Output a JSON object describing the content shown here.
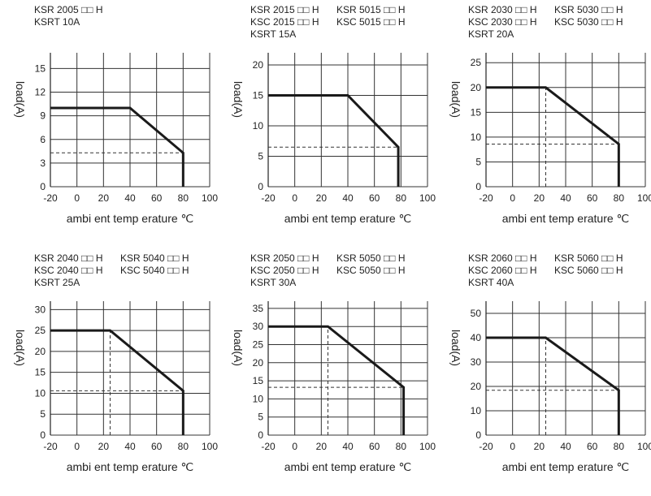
{
  "x_axis_label": "ambi ent temp erature ℃",
  "y_axis_label": "load(A)",
  "chart_data": [
    {
      "type": "line",
      "models": [
        [
          "KSR 2005 □□ H"
        ],
        [
          "KSRT 10A"
        ]
      ],
      "xlabel": "ambi ent temp erature ℃",
      "ylabel": "load(A)",
      "xticks": [
        -20,
        0,
        20,
        40,
        60,
        80,
        100
      ],
      "yticks": [
        0,
        3,
        6,
        9,
        12,
        15
      ],
      "xlim": [
        -20,
        100
      ],
      "ylim": [
        0,
        17
      ],
      "grid": true,
      "series": [
        {
          "x": [
            -20,
            40,
            80,
            80
          ],
          "y": [
            10,
            10,
            4.3,
            0
          ]
        }
      ],
      "dashed_h": {
        "y": 4.3,
        "x_from": -20,
        "x_to": 80
      },
      "dashed_v": null
    },
    {
      "type": "line",
      "models": [
        [
          "KSR 2015 □□ H",
          "KSR 5015 □□ H"
        ],
        [
          "KSC 2015 □□ H",
          "KSC 5015 □□ H"
        ],
        [
          "KSRT 15A"
        ]
      ],
      "xlabel": "ambi ent temp erature ℃",
      "ylabel": "load(A)",
      "xticks": [
        -20,
        0,
        20,
        40,
        60,
        80,
        100
      ],
      "yticks": [
        0,
        5,
        10,
        15,
        20
      ],
      "xlim": [
        -20,
        100
      ],
      "ylim": [
        0,
        22
      ],
      "grid": true,
      "series": [
        {
          "x": [
            -20,
            40,
            78,
            78
          ],
          "y": [
            15,
            15,
            6.5,
            0
          ]
        }
      ],
      "dashed_h": {
        "y": 6.5,
        "x_from": -20,
        "x_to": 78
      },
      "dashed_v": null
    },
    {
      "type": "line",
      "models": [
        [
          "KSR 2030 □□ H",
          "KSR 5030 □□ H"
        ],
        [
          "KSC 2030 □□ H",
          "KSC 5030 □□ H"
        ],
        [
          "KSRT 20A"
        ]
      ],
      "xlabel": "ambi ent temp erature ℃",
      "ylabel": "load(A)",
      "xticks": [
        -20,
        0,
        20,
        40,
        60,
        80,
        100
      ],
      "yticks": [
        0,
        5,
        10,
        15,
        20,
        25
      ],
      "xlim": [
        -20,
        100
      ],
      "ylim": [
        0,
        27
      ],
      "grid": true,
      "series": [
        {
          "x": [
            -20,
            25,
            80,
            80
          ],
          "y": [
            20,
            20,
            8.6,
            0
          ]
        }
      ],
      "dashed_h": {
        "y": 8.6,
        "x_from": -20,
        "x_to": 80
      },
      "dashed_v": {
        "x": 25,
        "y_from": 0,
        "y_to": 20
      }
    },
    {
      "type": "line",
      "models": [
        [
          "KSR 2040 □□ H",
          "KSR 5040 □□ H"
        ],
        [
          "KSC 2040 □□ H",
          "KSC 5040 □□ H"
        ],
        [
          "KSRT 25A"
        ]
      ],
      "xlabel": "ambi ent temp erature ℃",
      "ylabel": "load(A)",
      "xticks": [
        -20,
        0,
        20,
        40,
        60,
        80,
        100
      ],
      "yticks": [
        0,
        5,
        10,
        15,
        20,
        25,
        30
      ],
      "xlim": [
        -20,
        100
      ],
      "ylim": [
        0,
        32
      ],
      "grid": true,
      "series": [
        {
          "x": [
            -20,
            25,
            80,
            80
          ],
          "y": [
            25,
            25,
            10.6,
            0
          ]
        }
      ],
      "dashed_h": {
        "y": 10.6,
        "x_from": -20,
        "x_to": 80
      },
      "dashed_v": {
        "x": 25,
        "y_from": 0,
        "y_to": 25
      }
    },
    {
      "type": "line",
      "models": [
        [
          "KSR 2050 □□ H",
          "KSR 5050 □□ H"
        ],
        [
          "KSC 2050 □□ H",
          "KSC 5050 □□ H"
        ],
        [
          "KSRT 30A"
        ]
      ],
      "xlabel": "ambi ent temp erature ℃",
      "ylabel": "load(A)",
      "xticks": [
        -20,
        0,
        20,
        40,
        60,
        80,
        100
      ],
      "yticks": [
        0,
        5,
        10,
        15,
        20,
        25,
        30,
        35
      ],
      "xlim": [
        -20,
        100
      ],
      "ylim": [
        0,
        37
      ],
      "grid": true,
      "series": [
        {
          "x": [
            -20,
            25,
            82,
            82
          ],
          "y": [
            30,
            30,
            13.2,
            0
          ]
        }
      ],
      "dashed_h": {
        "y": 13.2,
        "x_from": -20,
        "x_to": 82
      },
      "dashed_v": {
        "x": 25,
        "y_from": 0,
        "y_to": 30
      }
    },
    {
      "type": "line",
      "models": [
        [
          "KSR 2060 □□ H",
          "KSR 5060 □□ H"
        ],
        [
          "KSC 2060 □□ H",
          "KSC 5060 □□ H"
        ],
        [
          "KSRT 40A"
        ]
      ],
      "xlabel": "ambi ent temp erature ℃",
      "ylabel": "load(A)",
      "xticks": [
        -20,
        0,
        20,
        40,
        60,
        80,
        100
      ],
      "yticks": [
        0,
        10,
        20,
        30,
        40,
        50
      ],
      "xlim": [
        -20,
        100
      ],
      "ylim": [
        0,
        55
      ],
      "grid": true,
      "series": [
        {
          "x": [
            -20,
            25,
            80,
            80
          ],
          "y": [
            40,
            40,
            18.4,
            0
          ]
        }
      ],
      "dashed_h": {
        "y": 18.4,
        "x_from": -20,
        "x_to": 80
      },
      "dashed_v": {
        "x": 25,
        "y_from": 0,
        "y_to": 40
      }
    }
  ]
}
